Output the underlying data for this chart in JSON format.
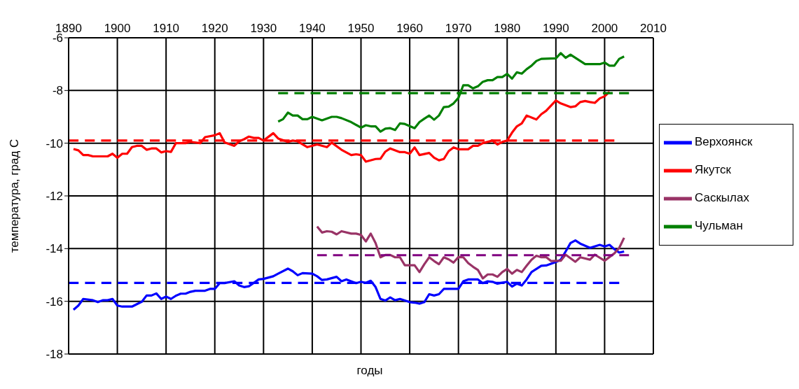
{
  "chart_data": {
    "type": "line",
    "xlabel": "годы",
    "ylabel": "температура, град С",
    "xlim": [
      1890,
      2010
    ],
    "xticks": [
      1890,
      1900,
      1910,
      1920,
      1930,
      1940,
      1950,
      1960,
      1970,
      1980,
      1990,
      2000,
      2010
    ],
    "ylim": [
      -18,
      -6
    ],
    "yticks": [
      -18,
      -16,
      -14,
      -12,
      -10,
      -8,
      -6
    ],
    "grid": true,
    "legend": "right",
    "marker": "none",
    "line_style": "solid",
    "series": [
      {
        "name": "Верхоянск",
        "color": "#0000ff",
        "x": [
          1891,
          1892,
          1893,
          1895,
          1896,
          1897,
          1898,
          1899,
          1900,
          1901,
          1903,
          1904,
          1905,
          1906,
          1907,
          1908,
          1909,
          1910,
          1911,
          1912,
          1913,
          1914,
          1915,
          1916,
          1918,
          1919,
          1920,
          1921,
          1922,
          1924,
          1925,
          1926,
          1927,
          1929,
          1930,
          1932,
          1933,
          1935,
          1936,
          1937,
          1938,
          1940,
          1941,
          1942,
          1943,
          1945,
          1946,
          1947,
          1949,
          1950,
          1951,
          1952,
          1953,
          1954,
          1955,
          1956,
          1957,
          1958,
          1960,
          1961,
          1962,
          1963,
          1964,
          1965,
          1966,
          1967,
          1970,
          1971,
          1972,
          1974,
          1975,
          1976,
          1977,
          1978,
          1980,
          1981,
          1982,
          1983,
          1984,
          1985,
          1986,
          1987,
          1988,
          1990,
          1991,
          1992,
          1993,
          1994,
          1995,
          1997,
          1999,
          2000,
          2001,
          2002,
          2003,
          2004
        ],
        "values": [
          -16.32,
          -16.16,
          -15.91,
          -15.96,
          -16.03,
          -15.96,
          -15.96,
          -15.91,
          -16.16,
          -16.2,
          -16.2,
          -16.11,
          -16.02,
          -15.78,
          -15.78,
          -15.7,
          -15.91,
          -15.82,
          -15.91,
          -15.79,
          -15.71,
          -15.71,
          -15.64,
          -15.6,
          -15.6,
          -15.53,
          -15.53,
          -15.31,
          -15.31,
          -15.24,
          -15.4,
          -15.46,
          -15.43,
          -15.17,
          -15.15,
          -15.05,
          -14.95,
          -14.76,
          -14.86,
          -15.01,
          -14.93,
          -14.95,
          -15.05,
          -15.19,
          -15.17,
          -15.07,
          -15.24,
          -15.17,
          -15.31,
          -15.26,
          -15.3,
          -15.22,
          -15.46,
          -15.91,
          -15.97,
          -15.85,
          -15.96,
          -15.91,
          -16.03,
          -16.05,
          -16.09,
          -16.03,
          -15.73,
          -15.78,
          -15.73,
          -15.53,
          -15.53,
          -15.24,
          -15.17,
          -15.17,
          -15.31,
          -15.24,
          -15.26,
          -15.33,
          -15.26,
          -15.44,
          -15.33,
          -15.4,
          -15.17,
          -14.89,
          -14.77,
          -14.65,
          -14.64,
          -14.51,
          -14.42,
          -14.11,
          -13.79,
          -13.69,
          -13.81,
          -13.97,
          -13.86,
          -13.92,
          -13.86,
          -14.02,
          -14.15,
          -14.11
        ]
      },
      {
        "name": "Якутск",
        "color": "#ff0000",
        "x": [
          1891,
          1892,
          1893,
          1894,
          1895,
          1898,
          1899,
          1900,
          1901,
          1902,
          1903,
          1904,
          1905,
          1906,
          1907,
          1908,
          1909,
          1910,
          1911,
          1912,
          1914,
          1915,
          1917,
          1918,
          1920,
          1921,
          1922,
          1924,
          1925,
          1926,
          1927,
          1928,
          1929,
          1930,
          1932,
          1933,
          1935,
          1936,
          1937,
          1939,
          1941,
          1943,
          1944,
          1946,
          1948,
          1949,
          1950,
          1951,
          1953,
          1954,
          1955,
          1956,
          1958,
          1959,
          1960,
          1961,
          1962,
          1964,
          1965,
          1966,
          1967,
          1968,
          1969,
          1970,
          1972,
          1973,
          1974,
          1975,
          1977,
          1978,
          1979,
          1980,
          1981,
          1982,
          1983,
          1984,
          1986,
          1987,
          1988,
          1990,
          1991,
          1993,
          1994,
          1995,
          1996,
          1997,
          1998,
          1999,
          2000,
          2001
        ],
        "values": [
          -10.22,
          -10.27,
          -10.45,
          -10.45,
          -10.5,
          -10.5,
          -10.4,
          -10.55,
          -10.4,
          -10.4,
          -10.15,
          -10.1,
          -10.1,
          -10.25,
          -10.2,
          -10.2,
          -10.35,
          -10.3,
          -10.33,
          -10.0,
          -10.0,
          -9.95,
          -10.0,
          -9.77,
          -9.7,
          -9.62,
          -9.97,
          -10.1,
          -9.93,
          -9.85,
          -9.75,
          -9.8,
          -9.8,
          -9.9,
          -9.62,
          -9.82,
          -9.95,
          -9.9,
          -9.93,
          -10.15,
          -10.05,
          -10.15,
          -9.98,
          -10.25,
          -10.45,
          -10.42,
          -10.45,
          -10.7,
          -10.6,
          -10.59,
          -10.32,
          -10.2,
          -10.34,
          -10.34,
          -10.4,
          -10.16,
          -10.45,
          -10.37,
          -10.55,
          -10.65,
          -10.6,
          -10.3,
          -10.16,
          -10.23,
          -10.23,
          -10.1,
          -10.1,
          -10.0,
          -9.9,
          -10.05,
          -9.95,
          -9.9,
          -9.6,
          -9.36,
          -9.25,
          -8.95,
          -9.1,
          -8.9,
          -8.77,
          -8.38,
          -8.49,
          -8.63,
          -8.6,
          -8.44,
          -8.4,
          -8.44,
          -8.47,
          -8.3,
          -8.22,
          -8.05
        ]
      },
      {
        "name": "Саскылах",
        "color": "#993366",
        "x": [
          1941,
          1942,
          1943,
          1944,
          1945,
          1946,
          1948,
          1949,
          1950,
          1951,
          1952,
          1953,
          1954,
          1955,
          1956,
          1957,
          1958,
          1959,
          1961,
          1962,
          1963,
          1964,
          1965,
          1966,
          1967,
          1968,
          1969,
          1970,
          1971,
          1972,
          1973,
          1974,
          1975,
          1976,
          1977,
          1978,
          1979,
          1980,
          1981,
          1982,
          1983,
          1984,
          1985,
          1986,
          1987,
          1988,
          1989,
          1991,
          1992,
          1994,
          1995,
          1997,
          1998,
          2000,
          2001,
          2002,
          2003,
          2004
        ],
        "values": [
          -13.16,
          -13.39,
          -13.34,
          -13.36,
          -13.46,
          -13.34,
          -13.43,
          -13.43,
          -13.48,
          -13.73,
          -13.43,
          -13.79,
          -14.33,
          -14.24,
          -14.24,
          -14.33,
          -14.33,
          -14.63,
          -14.63,
          -14.89,
          -14.59,
          -14.33,
          -14.47,
          -14.59,
          -14.33,
          -14.41,
          -14.53,
          -14.32,
          -14.33,
          -14.55,
          -14.69,
          -14.81,
          -15.13,
          -14.98,
          -14.98,
          -15.07,
          -14.89,
          -14.77,
          -14.95,
          -14.81,
          -14.89,
          -14.65,
          -14.42,
          -14.27,
          -14.33,
          -14.32,
          -14.47,
          -14.46,
          -14.23,
          -14.5,
          -14.33,
          -14.42,
          -14.23,
          -14.46,
          -14.32,
          -14.18,
          -13.97,
          -13.59
        ]
      },
      {
        "name": "Чульман",
        "color": "#008000",
        "x": [
          1933,
          1934,
          1935,
          1936,
          1937,
          1938,
          1939,
          1940,
          1942,
          1944,
          1945,
          1946,
          1948,
          1950,
          1951,
          1952,
          1953,
          1954,
          1955,
          1956,
          1957,
          1958,
          1959,
          1960,
          1961,
          1962,
          1963,
          1964,
          1965,
          1966,
          1967,
          1968,
          1969,
          1970,
          1971,
          1972,
          1973,
          1974,
          1975,
          1976,
          1977,
          1978,
          1979,
          1980,
          1981,
          1982,
          1983,
          1984,
          1985,
          1986,
          1987,
          1990,
          1991,
          1992,
          1993,
          1994,
          1996,
          1999,
          2000,
          2001,
          2002,
          2003,
          2004
        ],
        "values": [
          -9.18,
          -9.09,
          -8.84,
          -8.95,
          -8.95,
          -9.09,
          -9.09,
          -9.0,
          -9.13,
          -9.0,
          -9.0,
          -9.05,
          -9.2,
          -9.41,
          -9.32,
          -9.36,
          -9.36,
          -9.56,
          -9.45,
          -9.43,
          -9.5,
          -9.25,
          -9.27,
          -9.35,
          -9.43,
          -9.2,
          -9.07,
          -8.95,
          -9.11,
          -8.95,
          -8.63,
          -8.61,
          -8.49,
          -8.28,
          -7.8,
          -7.8,
          -7.92,
          -7.84,
          -7.67,
          -7.61,
          -7.61,
          -7.49,
          -7.49,
          -7.37,
          -7.55,
          -7.31,
          -7.36,
          -7.19,
          -7.06,
          -6.88,
          -6.8,
          -6.78,
          -6.58,
          -6.76,
          -6.64,
          -6.76,
          -7.0,
          -7.0,
          -6.94,
          -7.06,
          -7.06,
          -6.8,
          -6.71
        ]
      },
      {
        "color": "#0000ff",
        "line_style": "dashed",
        "x": [
          1890,
          2003
        ],
        "values": [
          -15.3,
          -15.3
        ]
      },
      {
        "color": "#ff0000",
        "line_style": "dashed",
        "x": [
          1890,
          2002
        ],
        "values": [
          -9.9,
          -9.9
        ]
      },
      {
        "color": "#800080",
        "line_style": "dashed",
        "x": [
          1941,
          2005
        ],
        "values": [
          -14.25,
          -14.25
        ]
      },
      {
        "color": "#008000",
        "line_style": "dashed",
        "x": [
          1933,
          2005
        ],
        "values": [
          -8.1,
          -8.1
        ]
      }
    ]
  }
}
